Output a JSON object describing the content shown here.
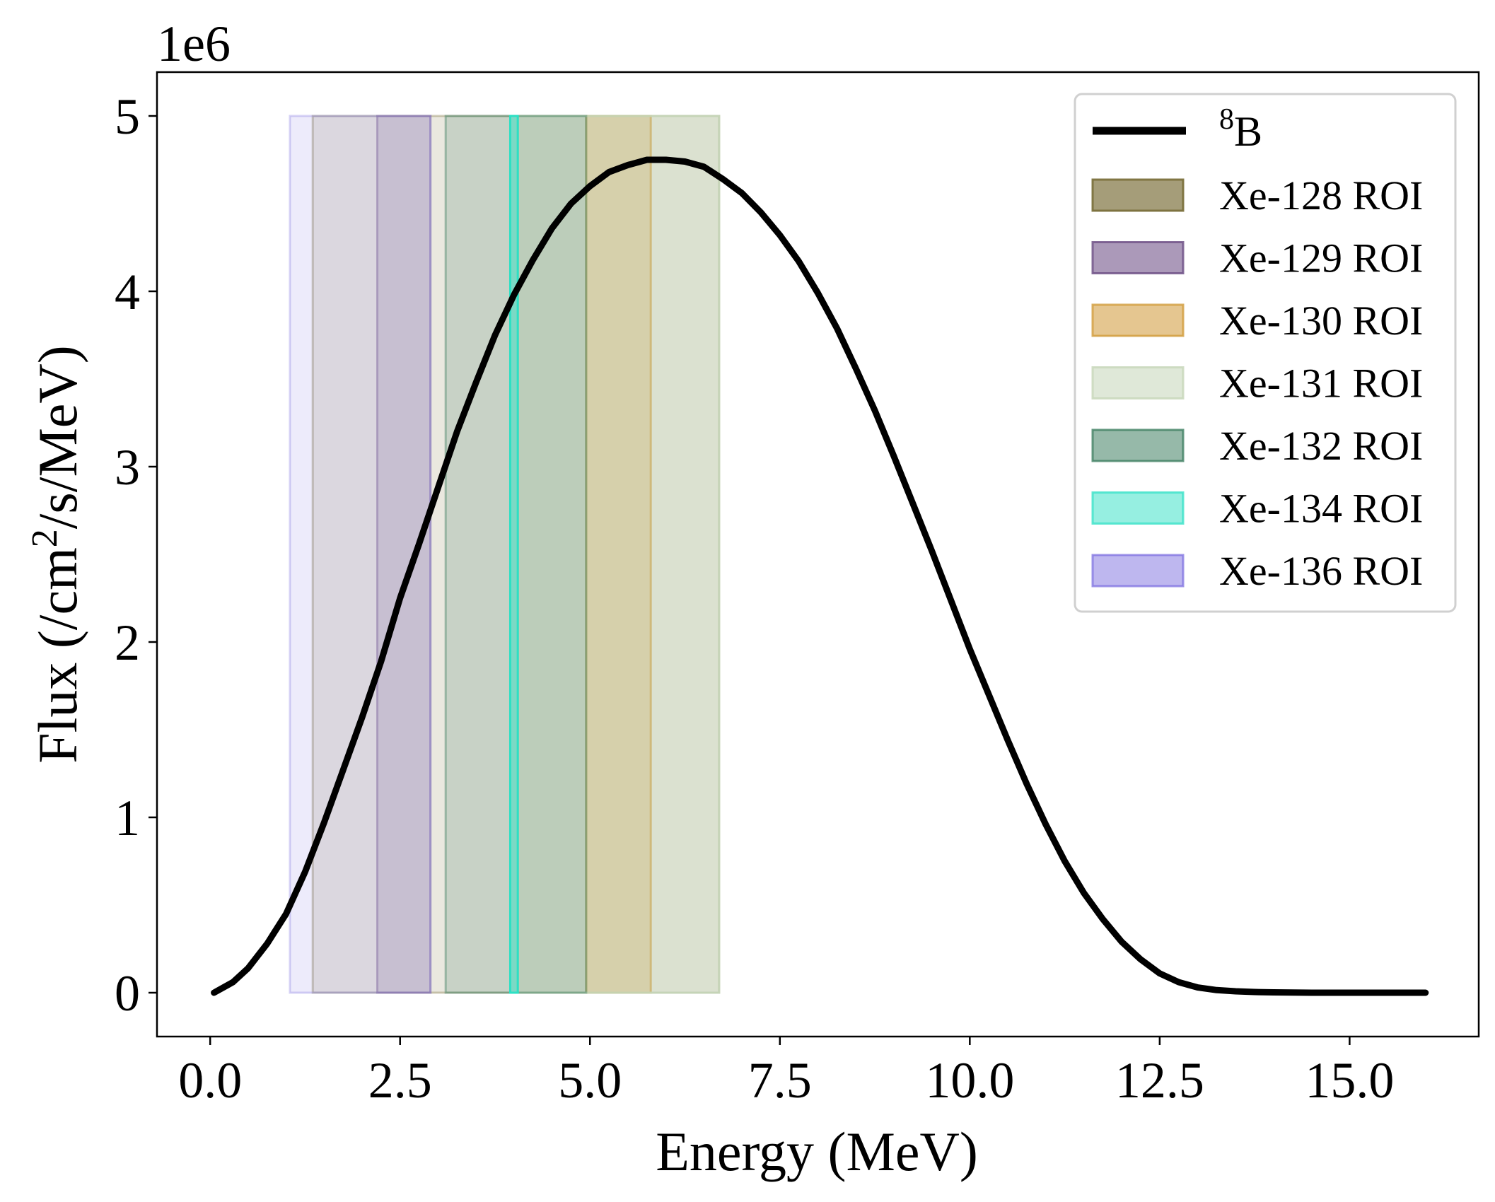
{
  "chart_data": {
    "type": "line",
    "xlabel": "Energy (MeV)",
    "ylabel": "Flux (/cm²/s/MeV)",
    "ylabel_parts": {
      "before": "Flux (/cm",
      "sup": "2",
      "after": "/s/MeV)"
    },
    "y_offset_text": "1e6",
    "xlim": [
      -0.7,
      16.7
    ],
    "ylim": [
      -0.25,
      5.25
    ],
    "x_ticks": [
      0.0,
      2.5,
      5.0,
      7.5,
      10.0,
      12.5,
      15.0
    ],
    "x_tick_labels": [
      "0.0",
      "2.5",
      "5.0",
      "7.5",
      "10.0",
      "12.5",
      "15.0"
    ],
    "y_ticks": [
      0,
      1,
      2,
      3,
      4,
      5
    ],
    "y_tick_labels": [
      "0",
      "1",
      "2",
      "3",
      "4",
      "5"
    ],
    "grid": false,
    "legend_position": "top-right",
    "series": [
      {
        "name": "8B",
        "name_parts": {
          "sup": "8",
          "base": "B"
        },
        "color": "#000000",
        "x": [
          0.05,
          0.3,
          0.5,
          0.75,
          1.0,
          1.25,
          1.5,
          1.75,
          2.0,
          2.25,
          2.5,
          2.75,
          3.0,
          3.25,
          3.5,
          3.75,
          4.0,
          4.25,
          4.5,
          4.75,
          5.0,
          5.25,
          5.5,
          5.75,
          6.0,
          6.25,
          6.5,
          6.75,
          7.0,
          7.25,
          7.5,
          7.75,
          8.0,
          8.25,
          8.5,
          8.75,
          9.0,
          9.25,
          9.5,
          9.75,
          10.0,
          10.25,
          10.5,
          10.75,
          11.0,
          11.25,
          11.5,
          11.75,
          12.0,
          12.25,
          12.5,
          12.75,
          13.0,
          13.25,
          13.5,
          13.75,
          14.0,
          14.25,
          14.5,
          15.0,
          15.5,
          16.0
        ],
        "y": [
          0.0,
          0.06,
          0.14,
          0.28,
          0.45,
          0.69,
          0.97,
          1.27,
          1.57,
          1.89,
          2.25,
          2.56,
          2.88,
          3.2,
          3.48,
          3.75,
          3.98,
          4.18,
          4.36,
          4.5,
          4.6,
          4.68,
          4.72,
          4.75,
          4.75,
          4.74,
          4.71,
          4.64,
          4.56,
          4.45,
          4.32,
          4.17,
          3.99,
          3.79,
          3.56,
          3.32,
          3.06,
          2.79,
          2.52,
          2.24,
          1.96,
          1.7,
          1.44,
          1.19,
          0.96,
          0.75,
          0.57,
          0.42,
          0.29,
          0.19,
          0.11,
          0.06,
          0.03,
          0.015,
          0.008,
          0.004,
          0.002,
          0.001,
          0.0,
          0.0,
          0.0,
          0.0
        ]
      }
    ],
    "regions": [
      {
        "name": "Xe-128 ROI",
        "x0": 1.35,
        "x1": 6.7,
        "ymax": 5.0,
        "color": "#7a6f3a",
        "alpha": 0.16,
        "legend_alpha": 0.68
      },
      {
        "name": "Xe-129 ROI",
        "x0": 2.2,
        "x1": 2.9,
        "ymax": 5.0,
        "color": "#6e4f86",
        "alpha": 0.18,
        "legend_alpha": 0.58
      },
      {
        "name": "Xe-130 ROI",
        "x0": 4.95,
        "x1": 5.8,
        "ymax": 5.0,
        "color": "#d39d40",
        "alpha": 0.38,
        "legend_alpha": 0.58
      },
      {
        "name": "Xe-131 ROI",
        "x0": 4.05,
        "x1": 6.7,
        "ymax": 5.0,
        "color": "#c5d6b8",
        "alpha": 0.4,
        "legend_alpha": 0.55
      },
      {
        "name": "Xe-132 ROI",
        "x0": 3.1,
        "x1": 4.95,
        "ymax": 5.0,
        "color": "#3f7f62",
        "alpha": 0.2,
        "legend_alpha": 0.55
      },
      {
        "name": "Xe-134 ROI",
        "x0": 3.95,
        "x1": 4.05,
        "ymax": 5.0,
        "color": "#2de0c4",
        "alpha": 0.5,
        "legend_alpha": 0.5
      },
      {
        "name": "Xe-136 ROI",
        "x0": 1.05,
        "x1": 2.9,
        "ymax": 5.0,
        "color": "#7e70e0",
        "alpha": 0.14,
        "legend_alpha": 0.5
      }
    ]
  }
}
